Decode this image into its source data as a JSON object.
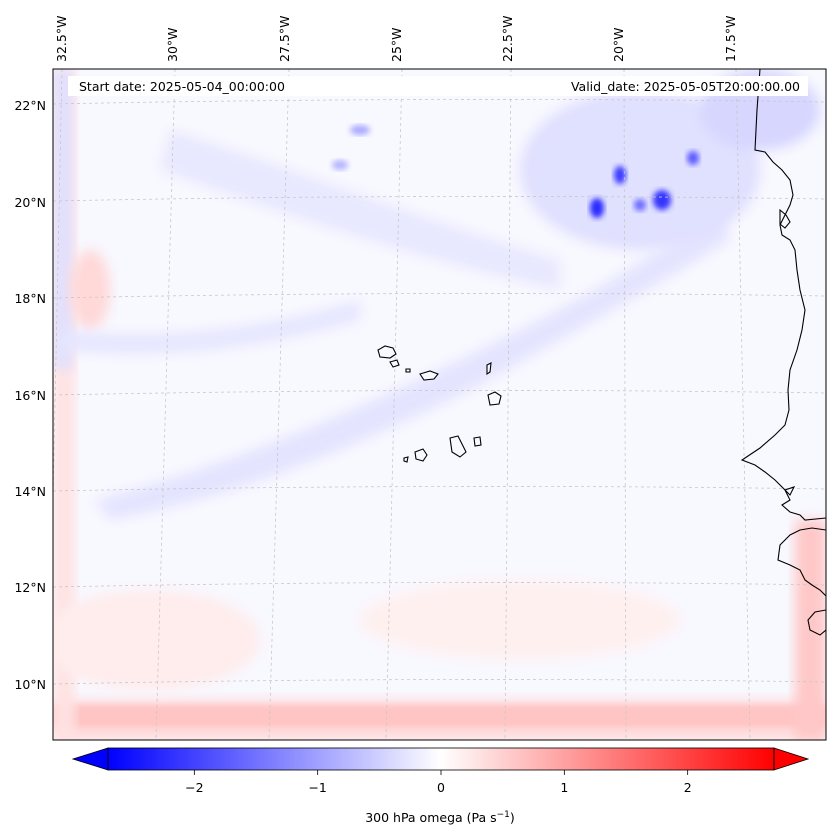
{
  "header": {
    "start_date": "Start date: 2025-05-04_00:00:00",
    "valid_date": "Valid_date: 2025-05-05T20:00:00.00"
  },
  "map": {
    "lon_labels": [
      "32.5°W",
      "30°W",
      "27.5°W",
      "25°W",
      "22.5°W",
      "20°W",
      "17.5°W"
    ],
    "lat_labels": [
      "22°N",
      "20°N",
      "18°N",
      "16°N",
      "14°N",
      "12°N",
      "10°N"
    ],
    "lat_range": [
      8.9,
      22.7
    ],
    "lon_range": [
      -33.2,
      -15.4
    ],
    "field": "300 hPa omega"
  },
  "colorbar": {
    "label_main": "300 hPa omega (Pa s",
    "label_sup": "−1",
    "label_end": ")",
    "min": -2.7,
    "max": 2.7,
    "ticks": [
      "−2",
      "−1",
      "0",
      "1",
      "2"
    ],
    "tick_values": [
      -2,
      -1,
      0,
      1,
      2
    ],
    "colors": {
      "negative": "#0000ff",
      "zero": "#ffffff",
      "positive": "#ff0000"
    }
  }
}
